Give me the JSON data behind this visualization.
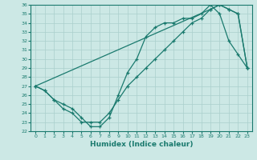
{
  "xlabel": "Humidex (Indice chaleur)",
  "xlim": [
    -0.5,
    23.5
  ],
  "ylim": [
    22,
    36
  ],
  "xticks": [
    0,
    1,
    2,
    3,
    4,
    5,
    6,
    7,
    8,
    9,
    10,
    11,
    12,
    13,
    14,
    15,
    16,
    17,
    18,
    19,
    20,
    21,
    22,
    23
  ],
  "yticks": [
    22,
    23,
    24,
    25,
    26,
    27,
    28,
    29,
    30,
    31,
    32,
    33,
    34,
    35,
    36
  ],
  "line_color": "#1a7a6e",
  "bg_color": "#cce8e5",
  "grid_color": "#aacfcc",
  "line1_x": [
    0,
    1,
    2,
    3,
    4,
    5,
    6,
    7,
    8,
    9,
    10,
    11,
    12,
    13,
    14,
    15,
    16,
    17,
    18,
    19,
    20,
    21,
    22,
    23
  ],
  "line1_y": [
    27,
    26.5,
    25.5,
    25,
    24.5,
    23.5,
    22.5,
    22.5,
    23.5,
    26,
    28.5,
    30,
    32.5,
    33.5,
    34,
    34,
    34.5,
    34.5,
    35,
    36,
    35,
    32,
    30.5,
    29
  ],
  "line2_x": [
    0,
    1,
    2,
    3,
    4,
    5,
    6,
    7,
    8,
    9,
    10,
    11,
    12,
    13,
    14,
    15,
    16,
    17,
    18,
    19,
    20,
    21,
    22,
    23
  ],
  "line2_y": [
    27,
    26.5,
    25.5,
    24.5,
    24,
    23,
    23,
    23,
    24,
    25.5,
    27,
    28,
    29,
    30,
    31,
    32,
    33,
    34,
    34.5,
    35.5,
    36,
    35.5,
    35,
    29
  ],
  "line3_x": [
    0,
    19,
    20,
    21,
    22,
    23
  ],
  "line3_y": [
    27,
    35.5,
    36,
    35.5,
    35,
    29
  ]
}
